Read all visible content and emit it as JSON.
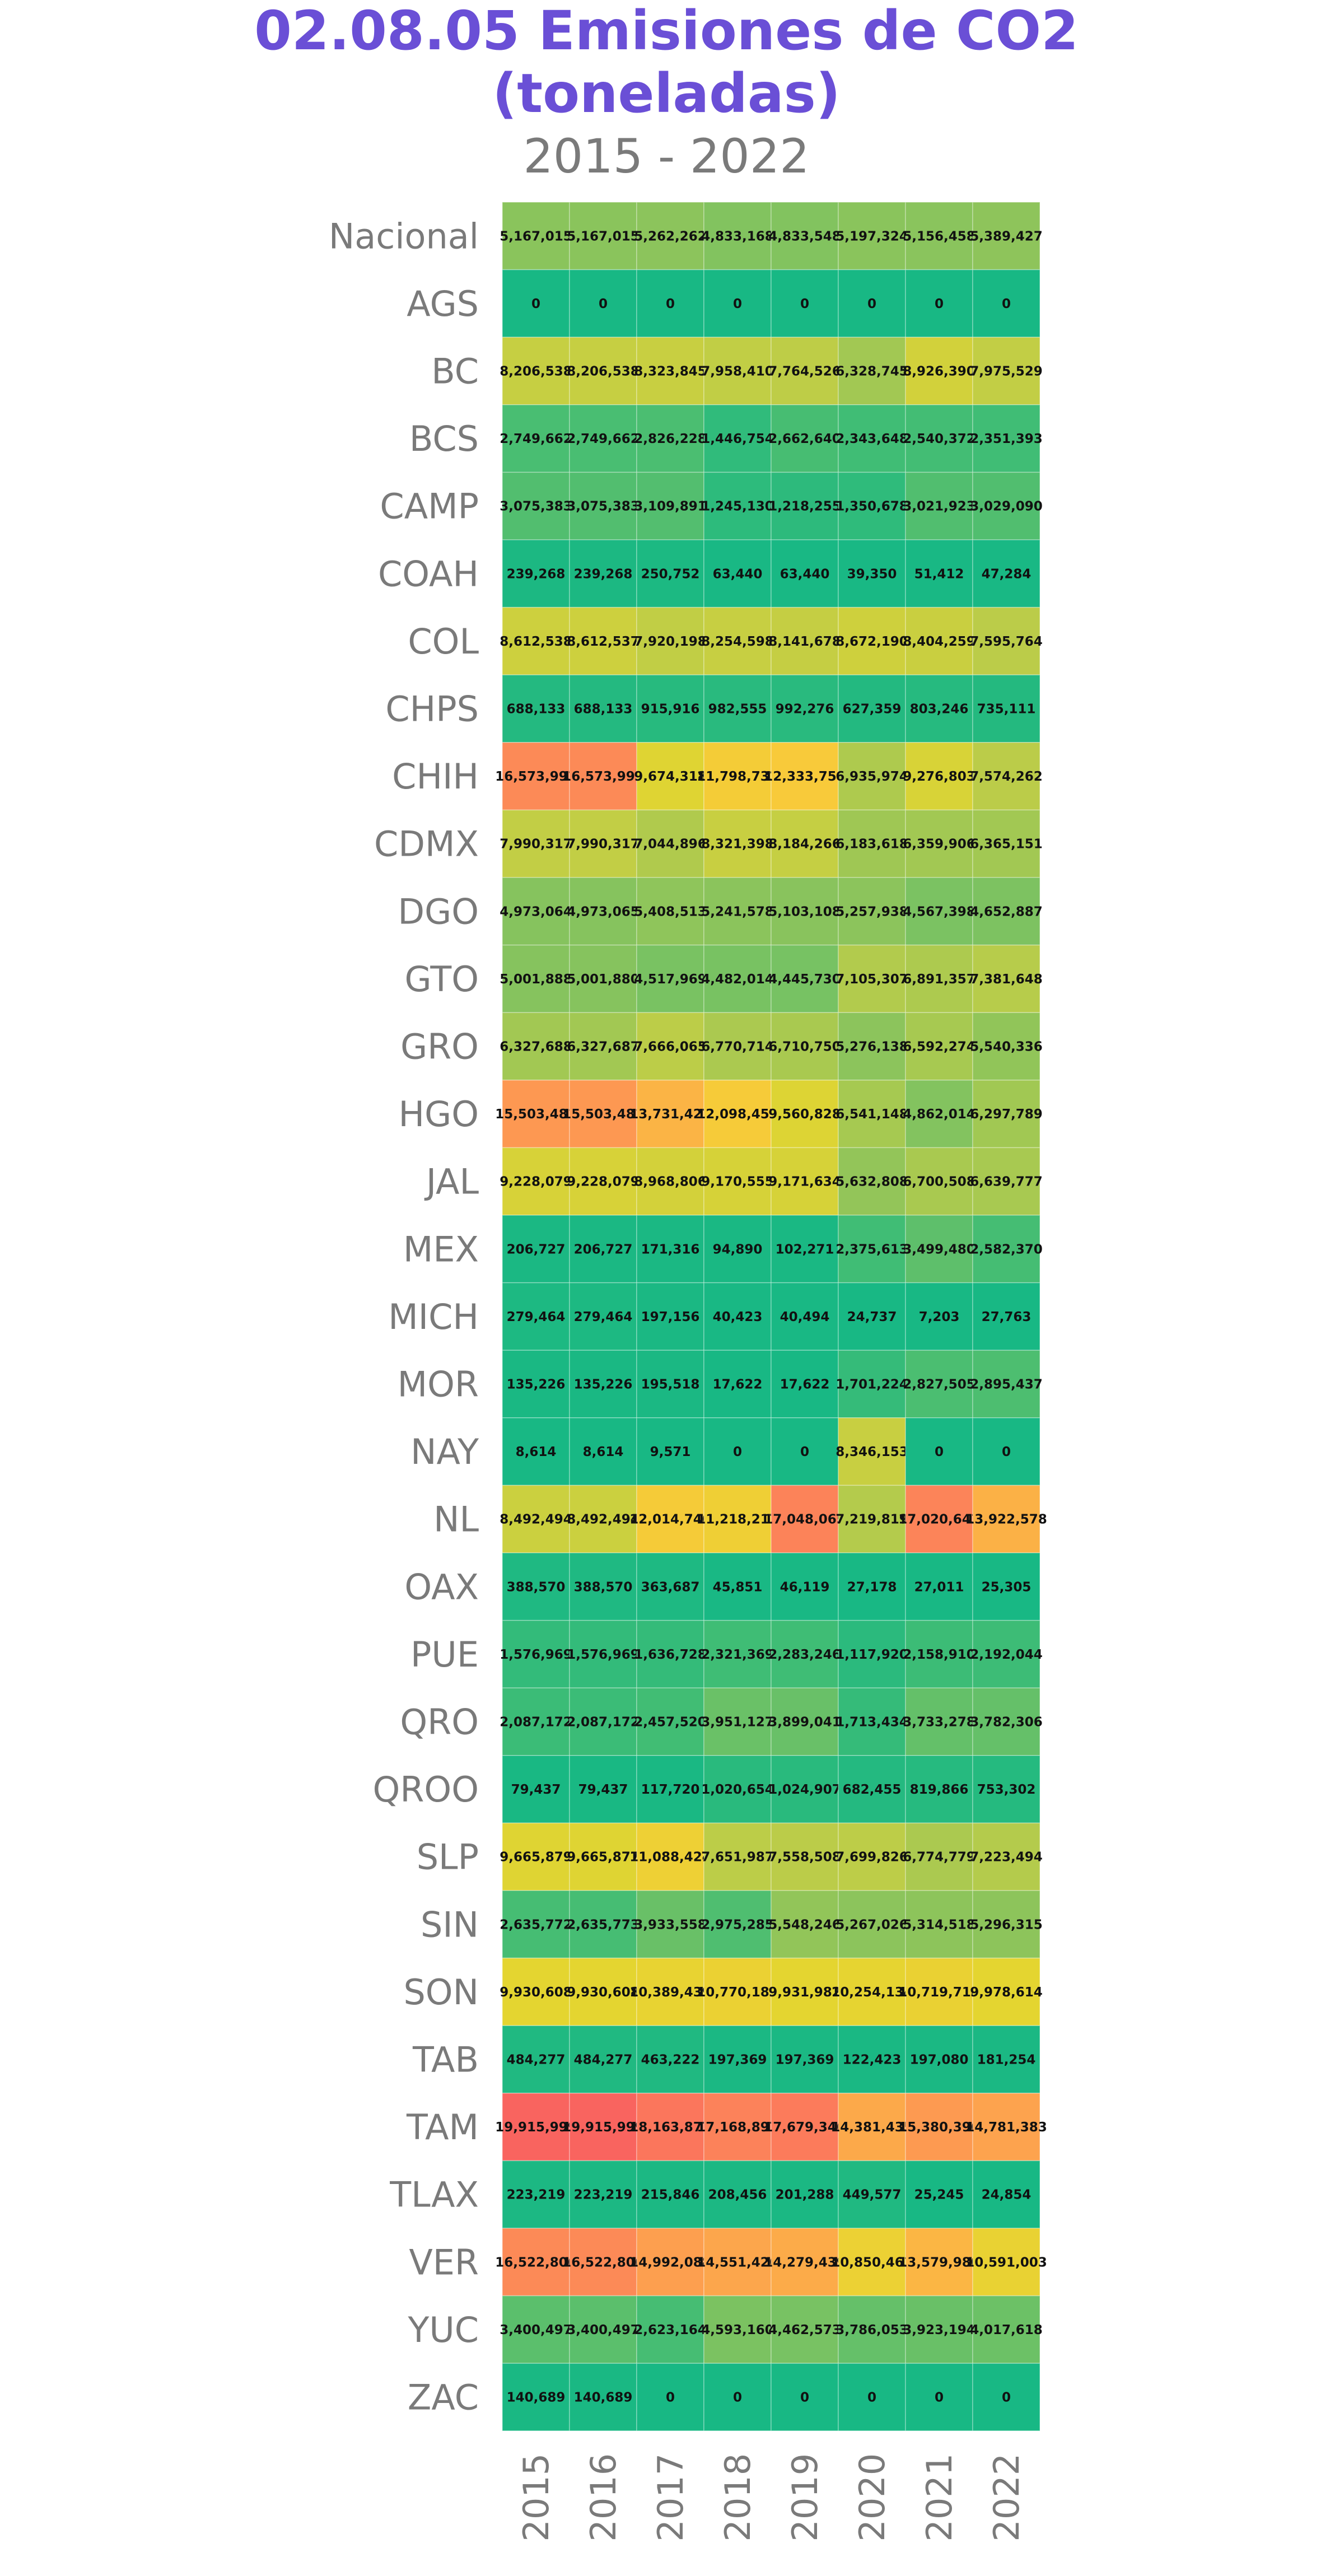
{
  "chart_data": {
    "type": "heatmap",
    "title_line1": "02.08.05 Emisiones de CO2",
    "title_line2": "(toneladas)",
    "subtitle": "2015 - 2022",
    "x": [
      "2015",
      "2016",
      "2017",
      "2018",
      "2019",
      "2020",
      "2021",
      "2022"
    ],
    "rows": [
      "Nacional",
      "AGS",
      "BC",
      "BCS",
      "CAMP",
      "COAH",
      "COL",
      "CHPS",
      "CHIH",
      "CDMX",
      "DGO",
      "GTO",
      "GRO",
      "HGO",
      "JAL",
      "MEX",
      "MICH",
      "MOR",
      "NAY",
      "NL",
      "OAX",
      "PUE",
      "QRO",
      "QROO",
      "SLP",
      "SIN",
      "SON",
      "TAB",
      "TAM",
      "TLAX",
      "VER",
      "YUC",
      "ZAC"
    ],
    "labels": [
      [
        "5,167,015",
        "5,167,015",
        "5,262,262",
        "4,833,168",
        "4,833,548",
        "5,197,324",
        "5,156,458",
        "5,389,427"
      ],
      [
        "0",
        "0",
        "0",
        "0",
        "0",
        "0",
        "0",
        "0"
      ],
      [
        "8,206,538",
        "8,206,538",
        "8,323,845",
        "7,958,410",
        "7,764,526",
        "6,328,745",
        "8,926,390",
        "7,975,529"
      ],
      [
        "2,749,662",
        "2,749,662",
        "2,826,228",
        "1,446,754",
        "2,662,640",
        "2,343,648",
        "2,540,372",
        "2,351,393"
      ],
      [
        "3,075,383",
        "3,075,383",
        "3,109,891",
        "1,245,130",
        "1,218,255",
        "1,350,678",
        "3,021,923",
        "3,029,090"
      ],
      [
        "239,268",
        "239,268",
        "250,752",
        "63,440",
        "63,440",
        "39,350",
        "51,412",
        "47,284"
      ],
      [
        "8,612,538",
        "8,612,537",
        "7,920,198",
        "8,254,598",
        "8,141,678",
        "8,672,190",
        "8,404,259",
        "7,595,764"
      ],
      [
        "688,133",
        "688,133",
        "915,916",
        "982,555",
        "992,276",
        "627,359",
        "803,246",
        "735,111"
      ],
      [
        "16,573,993",
        "16,573,993",
        "9,674,318",
        "11,798,732",
        "12,333,750",
        "6,935,974",
        "9,276,803",
        "7,574,262"
      ],
      [
        "7,990,317",
        "7,990,317",
        "7,044,896",
        "8,321,398",
        "8,184,266",
        "6,183,618",
        "6,359,906",
        "6,365,151"
      ],
      [
        "4,973,064",
        "4,973,065",
        "5,408,513",
        "5,241,578",
        "5,103,108",
        "5,257,938",
        "4,567,398",
        "4,652,887"
      ],
      [
        "5,001,888",
        "5,001,880",
        "4,517,969",
        "4,482,014",
        "4,445,730",
        "7,105,307",
        "6,891,357",
        "7,381,648"
      ],
      [
        "6,327,688",
        "6,327,687",
        "7,666,065",
        "6,770,714",
        "6,710,750",
        "5,276,138",
        "6,592,274",
        "5,540,336"
      ],
      [
        "15,503,481",
        "15,503,481",
        "13,731,427",
        "12,098,457",
        "9,560,828",
        "6,541,148",
        "4,862,014",
        "6,297,789"
      ],
      [
        "9,228,079",
        "9,228,079",
        "8,968,806",
        "9,170,555",
        "9,171,634",
        "5,632,808",
        "6,700,508",
        "6,639,777"
      ],
      [
        "206,727",
        "206,727",
        "171,316",
        "94,890",
        "102,271",
        "2,375,613",
        "3,499,480",
        "2,582,370"
      ],
      [
        "279,464",
        "279,464",
        "197,156",
        "40,423",
        "40,494",
        "24,737",
        "7,203",
        "27,763"
      ],
      [
        "135,226",
        "135,226",
        "195,518",
        "17,622",
        "17,622",
        "1,701,224",
        "2,827,505",
        "2,895,437"
      ],
      [
        "8,614",
        "8,614",
        "9,571",
        "0",
        "0",
        "8,346,153",
        "0",
        "0"
      ],
      [
        "8,492,494",
        "8,492,494",
        "12,014,746",
        "11,218,217",
        "17,048,065",
        "7,219,819",
        "17,020,643",
        "13,922,578"
      ],
      [
        "388,570",
        "388,570",
        "363,687",
        "45,851",
        "46,119",
        "27,178",
        "27,011",
        "25,305"
      ],
      [
        "1,576,969",
        "1,576,969",
        "1,636,728",
        "2,321,369",
        "2,283,246",
        "1,117,920",
        "2,158,910",
        "2,192,044"
      ],
      [
        "2,087,172",
        "2,087,172",
        "2,457,520",
        "3,951,127",
        "3,899,041",
        "1,713,434",
        "3,733,278",
        "3,782,306"
      ],
      [
        "79,437",
        "79,437",
        "117,720",
        "1,020,654",
        "1,024,907",
        "682,455",
        "819,866",
        "753,302"
      ],
      [
        "9,665,879",
        "9,665,877",
        "11,088,424",
        "7,651,987",
        "7,558,508",
        "7,699,826",
        "6,774,779",
        "7,223,494"
      ],
      [
        "2,635,772",
        "2,635,773",
        "3,933,558",
        "2,975,285",
        "5,548,246",
        "5,267,026",
        "5,314,518",
        "5,296,315"
      ],
      [
        "9,930,608",
        "9,930,608",
        "10,389,439",
        "10,770,183",
        "9,931,982",
        "10,254,134",
        "10,719,718",
        "9,978,614"
      ],
      [
        "484,277",
        "484,277",
        "463,222",
        "197,369",
        "197,369",
        "122,423",
        "197,080",
        "181,254"
      ],
      [
        "19,915,999",
        "19,915,999",
        "18,163,877",
        "17,168,897",
        "17,679,346",
        "14,381,435",
        "15,380,396",
        "14,781,383"
      ],
      [
        "223,219",
        "223,219",
        "215,846",
        "208,456",
        "201,288",
        "449,577",
        "25,245",
        "24,854"
      ],
      [
        "16,522,806",
        "16,522,806",
        "14,992,088",
        "14,551,426",
        "14,279,439",
        "10,850,463",
        "13,579,980",
        "10,591,003"
      ],
      [
        "3,400,497",
        "3,400,497",
        "2,623,164",
        "4,593,160",
        "4,462,573",
        "3,786,053",
        "3,923,194",
        "4,017,618"
      ],
      [
        "140,689",
        "140,689",
        "0",
        "0",
        "0",
        "0",
        "0",
        "0"
      ]
    ],
    "color_scale": [
      "#18b884",
      "#42bd74",
      "#86c35e",
      "#b9cc4a",
      "#e4d530",
      "#f9c93a",
      "#fda04f",
      "#fc7e5b",
      "#f9645f"
    ]
  }
}
